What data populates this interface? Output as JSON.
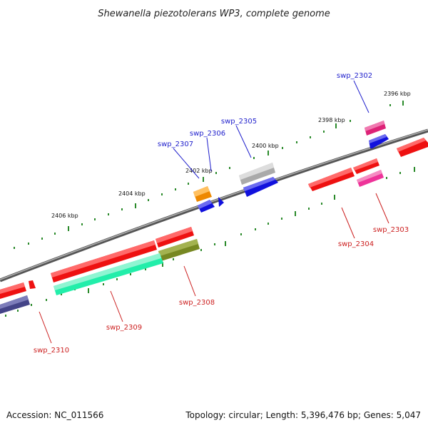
{
  "title": "Shewanella piezotolerans WP3, complete genome",
  "accession_label": "Accession: NC_011566",
  "stats_label": "Topology: circular; Length: 5,396,476 bp; Genes: 5,047",
  "backbone_color": "#777777",
  "label_colors": {
    "forward": "#1f1fcc",
    "reverse": "#cc1f1f"
  },
  "tick_labels": [
    "2396 kbp",
    "2398 kbp",
    "2400 kbp",
    "2402 kbp",
    "2404 kbp",
    "2406 kbp"
  ],
  "genes": [
    {
      "name": "swp_2302",
      "strand": "forward",
      "color": "#dd2277"
    },
    {
      "name": "swp_2303",
      "strand": "reverse",
      "color": "#ee3399"
    },
    {
      "name": "swp_2304",
      "strand": "reverse",
      "color": "#ee1111"
    },
    {
      "name": "swp_2305",
      "strand": "forward",
      "color": "#aaaaaa"
    },
    {
      "name": "swp_2306",
      "strand": "forward",
      "color": "#1111dd"
    },
    {
      "name": "swp_2307",
      "strand": "forward",
      "color": "#ee8800"
    },
    {
      "name": "swp_2308",
      "strand": "reverse",
      "color": "#778822"
    },
    {
      "name": "swp_2309",
      "strand": "reverse",
      "color": "#22eeaa"
    },
    {
      "name": "swp_2310",
      "strand": "reverse",
      "color": "#444488"
    }
  ]
}
